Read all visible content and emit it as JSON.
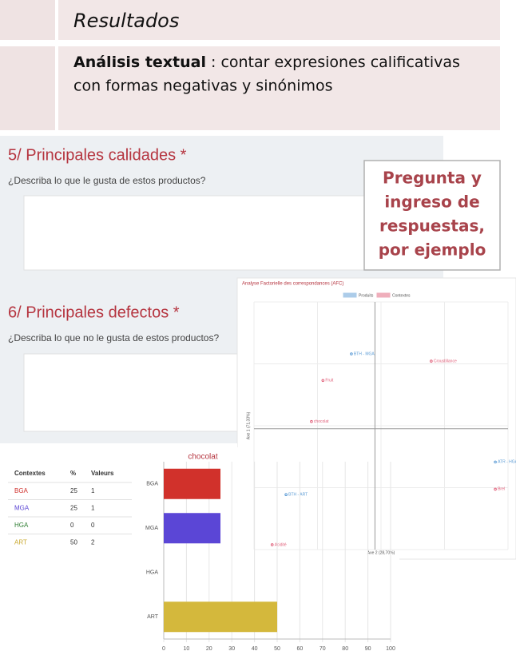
{
  "header": {
    "title": "Resultados"
  },
  "subtitle": {
    "bold": "Análisis textual",
    "text": ": contar expresiones calificativas",
    "line2": "con formas negativas y sinónimos"
  },
  "form": {
    "questions": [
      {
        "title": "5/ Principales calidades *",
        "prompt": "¿Describa lo que le gusta de estos productos?"
      },
      {
        "title": "6/ Principales defectos *",
        "prompt": "¿Describa lo que no le gusta de estos productos?"
      }
    ]
  },
  "callout": {
    "lines": [
      "Pregunta y",
      "ingreso de",
      "respuestas,",
      "por ejemplo"
    ]
  },
  "table": {
    "header": [
      "Contextes",
      "%",
      "Valeurs"
    ],
    "rows": [
      [
        "BGA",
        25,
        1
      ],
      [
        "MGA",
        25,
        1
      ],
      [
        "HGA",
        0,
        0
      ],
      [
        "ART",
        50,
        2
      ]
    ],
    "row_colors": [
      "#d0312d",
      "#5a44d4",
      "#2e7d32",
      "#c9a82e"
    ]
  },
  "chart_data": [
    {
      "type": "scatter",
      "title": "Analyse Factorielle des correspondances (AFC)",
      "x_label": "Axe 2 (28,70%)",
      "y_label": "Axe 1 (71,33%)",
      "xlim": [
        -2,
        2.2
      ],
      "ylim": [
        -2,
        2.1
      ],
      "grid": true,
      "series": [
        {
          "name": "Produits",
          "color": "#5b9bd5",
          "x": [
            -0.39,
            1.99,
            -1.47
          ],
          "y": [
            1.24,
            -0.55,
            -1.09
          ],
          "labels": [
            "BTH - MGA",
            "ATR - HGA",
            "BTH - ART"
          ]
        },
        {
          "name": "Contextes",
          "color": "#e0607a",
          "x": [
            0.93,
            -0.86,
            -1.05,
            1.99,
            -1.7
          ],
          "y": [
            1.12,
            0.8,
            0.12,
            -1.0,
            -1.92
          ],
          "labels": [
            "Croustillance",
            "Fruit",
            "chocolat",
            "Brel",
            "Acidité"
          ]
        }
      ]
    },
    {
      "type": "bar",
      "orientation": "horizontal",
      "title": "chocolat",
      "categories": [
        "BGA",
        "MGA",
        "HGA",
        "ART"
      ],
      "values": [
        25,
        25,
        0,
        50
      ],
      "colors": [
        "#d1312b",
        "#5b46d6",
        "#3a9a3a",
        "#d4b83c"
      ],
      "xlim": [
        0,
        100
      ],
      "xticks": [
        0,
        10,
        20,
        30,
        40,
        50,
        60,
        70,
        80,
        90,
        100
      ],
      "grid": true
    }
  ]
}
